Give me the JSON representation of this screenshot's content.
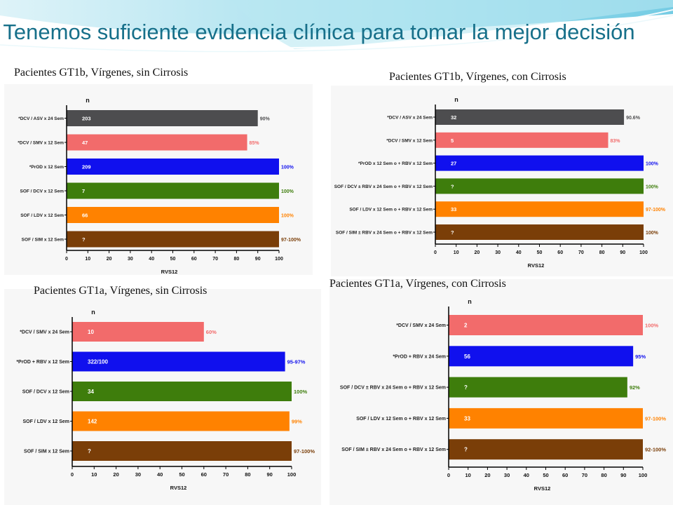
{
  "slide": {
    "title": "Tenemos suficiente evidencia clínica para tomar la mejor decisión",
    "colors": {
      "title": "#17708a",
      "accent_bg": "#7fd3e6"
    }
  },
  "chart_data": [
    {
      "type": "bar",
      "orientation": "horizontal",
      "title": "Pacientes GT1b, Vírgenes, sin Cirrosis",
      "n_label": "n",
      "xlabel": "RVS12",
      "xlim": [
        0,
        100
      ],
      "xticks": [
        0,
        10,
        20,
        30,
        40,
        50,
        60,
        70,
        80,
        90,
        100
      ],
      "categories": [
        "*DCV / ASV x 24 Sem",
        "*DCV / SMV x 12 Sem",
        "*PrOD x 12 Sem",
        "SOF / DCV x 12 Sem",
        "SOF / LDV x 12 Sem",
        "SOF / SIM x 12 Sem"
      ],
      "values": [
        90,
        85,
        100,
        100,
        100,
        100
      ],
      "n": [
        "203",
        "47",
        "209",
        "7",
        "66",
        "?"
      ],
      "value_labels": [
        "90%",
        "85%",
        "100%",
        "100%",
        "100%",
        "97-100%"
      ],
      "colors": [
        "#4d4d4f",
        "#f26b6b",
        "#1010ee",
        "#3e7d0c",
        "#ff8200",
        "#7a3e08"
      ]
    },
    {
      "type": "bar",
      "orientation": "horizontal",
      "title": "Pacientes GT1b, Vírgenes, con Cirrosis",
      "n_label": "n",
      "xlabel": "RVS12",
      "xlim": [
        0,
        100
      ],
      "xticks": [
        0,
        10,
        20,
        30,
        40,
        50,
        60,
        70,
        80,
        90,
        100
      ],
      "categories": [
        "*DCV / ASV x 24 Sem",
        "*DCV / SMV x 12 Sem",
        "*PrOD x 12 Sem o + RBV x 12 Sem",
        "SOF / DCV ± RBV x 24 Sem o + RBV x 12 Sem",
        "SOF / LDV x 12 Sem o + RBV x 12 Sem",
        "SOF / SIM ± RBV x 24 Sem o + RBV x 12 Sem"
      ],
      "values": [
        90.6,
        83,
        100,
        100,
        100,
        100
      ],
      "n": [
        "32",
        "5",
        "27",
        "?",
        "33",
        "?"
      ],
      "value_labels": [
        "90.6%",
        "83%",
        "100%",
        "100%",
        "97-100%",
        "100%"
      ],
      "colors": [
        "#4d4d4f",
        "#f26b6b",
        "#1010ee",
        "#3e7d0c",
        "#ff8200",
        "#7a3e08"
      ]
    },
    {
      "type": "bar",
      "orientation": "horizontal",
      "title": "Pacientes GT1a, Vírgenes, sin Cirrosis",
      "n_label": "n",
      "xlabel": "RVS12",
      "xlim": [
        0,
        100
      ],
      "xticks": [
        0,
        10,
        20,
        30,
        40,
        50,
        60,
        70,
        80,
        90,
        100
      ],
      "categories": [
        "*DCV / SMV x 24 Sem",
        "*PrOD + RBV x 12 Sem",
        "SOF / DCV x 12 Sem",
        "SOF / LDV x 12 Sem",
        "SOF / SIM x 12 Sem"
      ],
      "values": [
        60,
        97,
        100,
        99,
        100
      ],
      "n": [
        "10",
        "322/100",
        "34",
        "142",
        "?"
      ],
      "value_labels": [
        "60%",
        "95-97%",
        "100%",
        "99%",
        "97-100%"
      ],
      "colors": [
        "#f26b6b",
        "#1010ee",
        "#3e7d0c",
        "#ff8200",
        "#7a3e08"
      ]
    },
    {
      "type": "bar",
      "orientation": "horizontal",
      "title": "Pacientes GT1a, Vírgenes, con Cirrosis",
      "n_label": "n",
      "xlabel": "RVS12",
      "xlim": [
        0,
        100
      ],
      "xticks": [
        0,
        10,
        20,
        30,
        40,
        50,
        60,
        70,
        80,
        90,
        100
      ],
      "categories": [
        "*DCV / SMV x 24 Sem",
        "*PrOD + RBV x 24 Sem",
        "SOF / DCV ± RBV x 24 Sem o + RBV x 12 Sem",
        "SOF / LDV x 12 Sem o + RBV x 12 Sem",
        "SOF / SIM ± RBV x 24 Sem o + RBV x 12 Sem"
      ],
      "values": [
        100,
        95,
        92,
        100,
        100
      ],
      "n": [
        "2",
        "56",
        "?",
        "33",
        "?"
      ],
      "value_labels": [
        "100%",
        "95%",
        "92%",
        "97-100%",
        "92-100%"
      ],
      "colors": [
        "#f26b6b",
        "#1010ee",
        "#3e7d0c",
        "#ff8200",
        "#7a3e08"
      ]
    }
  ]
}
